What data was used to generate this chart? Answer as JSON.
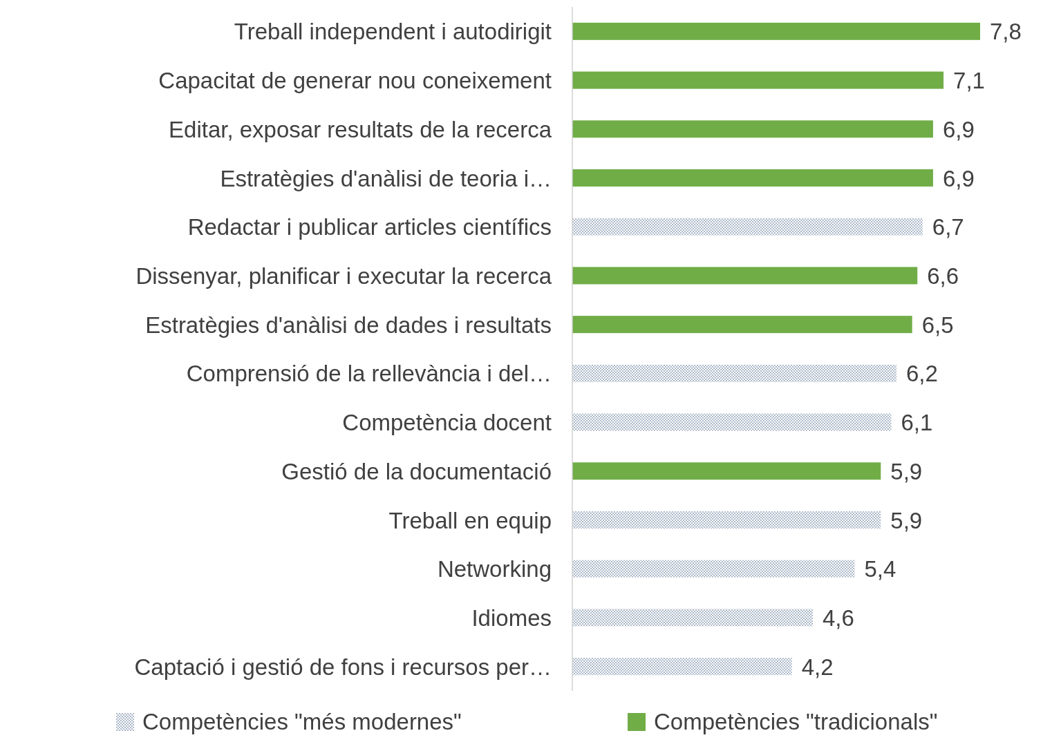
{
  "chart_data": {
    "type": "bar",
    "orientation": "horizontal",
    "legend": "bottom",
    "categories": [
      "Treball independent i autodirigit",
      "Capacitat de generar nou coneixement",
      "Editar, exposar resultats de la recerca",
      "Estratègies d'anàlisi de teoria i…",
      "Redactar i publicar articles científics",
      "Dissenyar, planificar i executar la recerca",
      "Estratègies d'anàlisi de dades i resultats",
      "Comprensió de la rellevància i del…",
      "Competència docent",
      "Gestió de la documentació",
      "Treball en equip",
      "Networking",
      "Idiomes",
      "Captació i gestió de fons i recursos per…"
    ],
    "series": [
      {
        "name": "Competències \"més modernes\"",
        "color": "#adb9ca",
        "values": [
          null,
          null,
          null,
          null,
          6.7,
          null,
          null,
          6.2,
          6.1,
          null,
          5.9,
          5.4,
          4.6,
          4.2
        ],
        "value_labels": [
          null,
          null,
          null,
          null,
          "6,7",
          null,
          null,
          "6,2",
          "6,1",
          null,
          "5,9",
          "5,4",
          "4,6",
          "4,2"
        ]
      },
      {
        "name": "Competències \"tradicionals\"",
        "color": "#70ad47",
        "values": [
          7.8,
          7.1,
          6.9,
          6.9,
          null,
          6.6,
          6.5,
          null,
          null,
          5.9,
          null,
          null,
          null,
          null
        ],
        "value_labels": [
          "7,8",
          "7,1",
          "6,9",
          "6,9",
          null,
          "6,6",
          "6,5",
          null,
          null,
          "5,9",
          null,
          null,
          null,
          null
        ]
      }
    ]
  }
}
